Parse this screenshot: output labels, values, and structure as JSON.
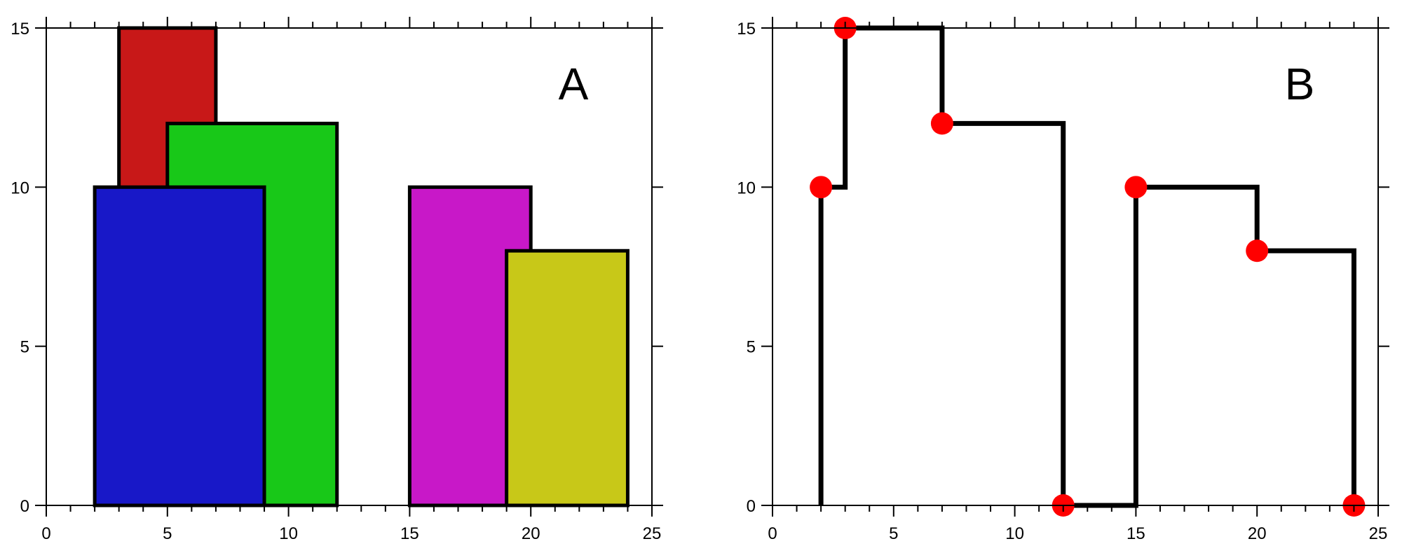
{
  "chart_data": [
    {
      "type": "bar",
      "panel_label": "A",
      "title": "",
      "xlabel": "",
      "ylabel": "",
      "xlim": [
        0,
        25
      ],
      "ylim": [
        0,
        15
      ],
      "xticks": [
        0,
        5,
        10,
        15,
        20,
        25
      ],
      "yticks": [
        0,
        5,
        10,
        15
      ],
      "grid": false,
      "rectangles": [
        {
          "left": 3,
          "right": 7,
          "height": 15,
          "color": "#c81818"
        },
        {
          "left": 5,
          "right": 12,
          "height": 12,
          "color": "#18c818"
        },
        {
          "left": 2,
          "right": 9,
          "height": 10,
          "color": "#1818c8"
        },
        {
          "left": 15,
          "right": 20,
          "height": 10,
          "color": "#c818c8"
        },
        {
          "left": 19,
          "right": 24,
          "height": 8,
          "color": "#c8c818"
        }
      ]
    },
    {
      "type": "line",
      "panel_label": "B",
      "title": "",
      "xlabel": "",
      "ylabel": "",
      "xlim": [
        0,
        25
      ],
      "ylim": [
        0,
        15
      ],
      "xticks": [
        0,
        5,
        10,
        15,
        20,
        25
      ],
      "yticks": [
        0,
        5,
        10,
        15
      ],
      "grid": false,
      "line_color": "#000000",
      "point_color": "#ff0000",
      "skyline": [
        [
          2,
          0
        ],
        [
          2,
          10
        ],
        [
          3,
          10
        ],
        [
          3,
          15
        ],
        [
          7,
          15
        ],
        [
          7,
          12
        ],
        [
          12,
          12
        ],
        [
          12,
          0
        ],
        [
          15,
          0
        ],
        [
          15,
          10
        ],
        [
          20,
          10
        ],
        [
          20,
          8
        ],
        [
          24,
          8
        ],
        [
          24,
          0
        ]
      ],
      "key_points": [
        [
          2,
          10
        ],
        [
          3,
          15
        ],
        [
          7,
          12
        ],
        [
          12,
          0
        ],
        [
          15,
          10
        ],
        [
          20,
          8
        ],
        [
          24,
          0
        ]
      ]
    }
  ]
}
